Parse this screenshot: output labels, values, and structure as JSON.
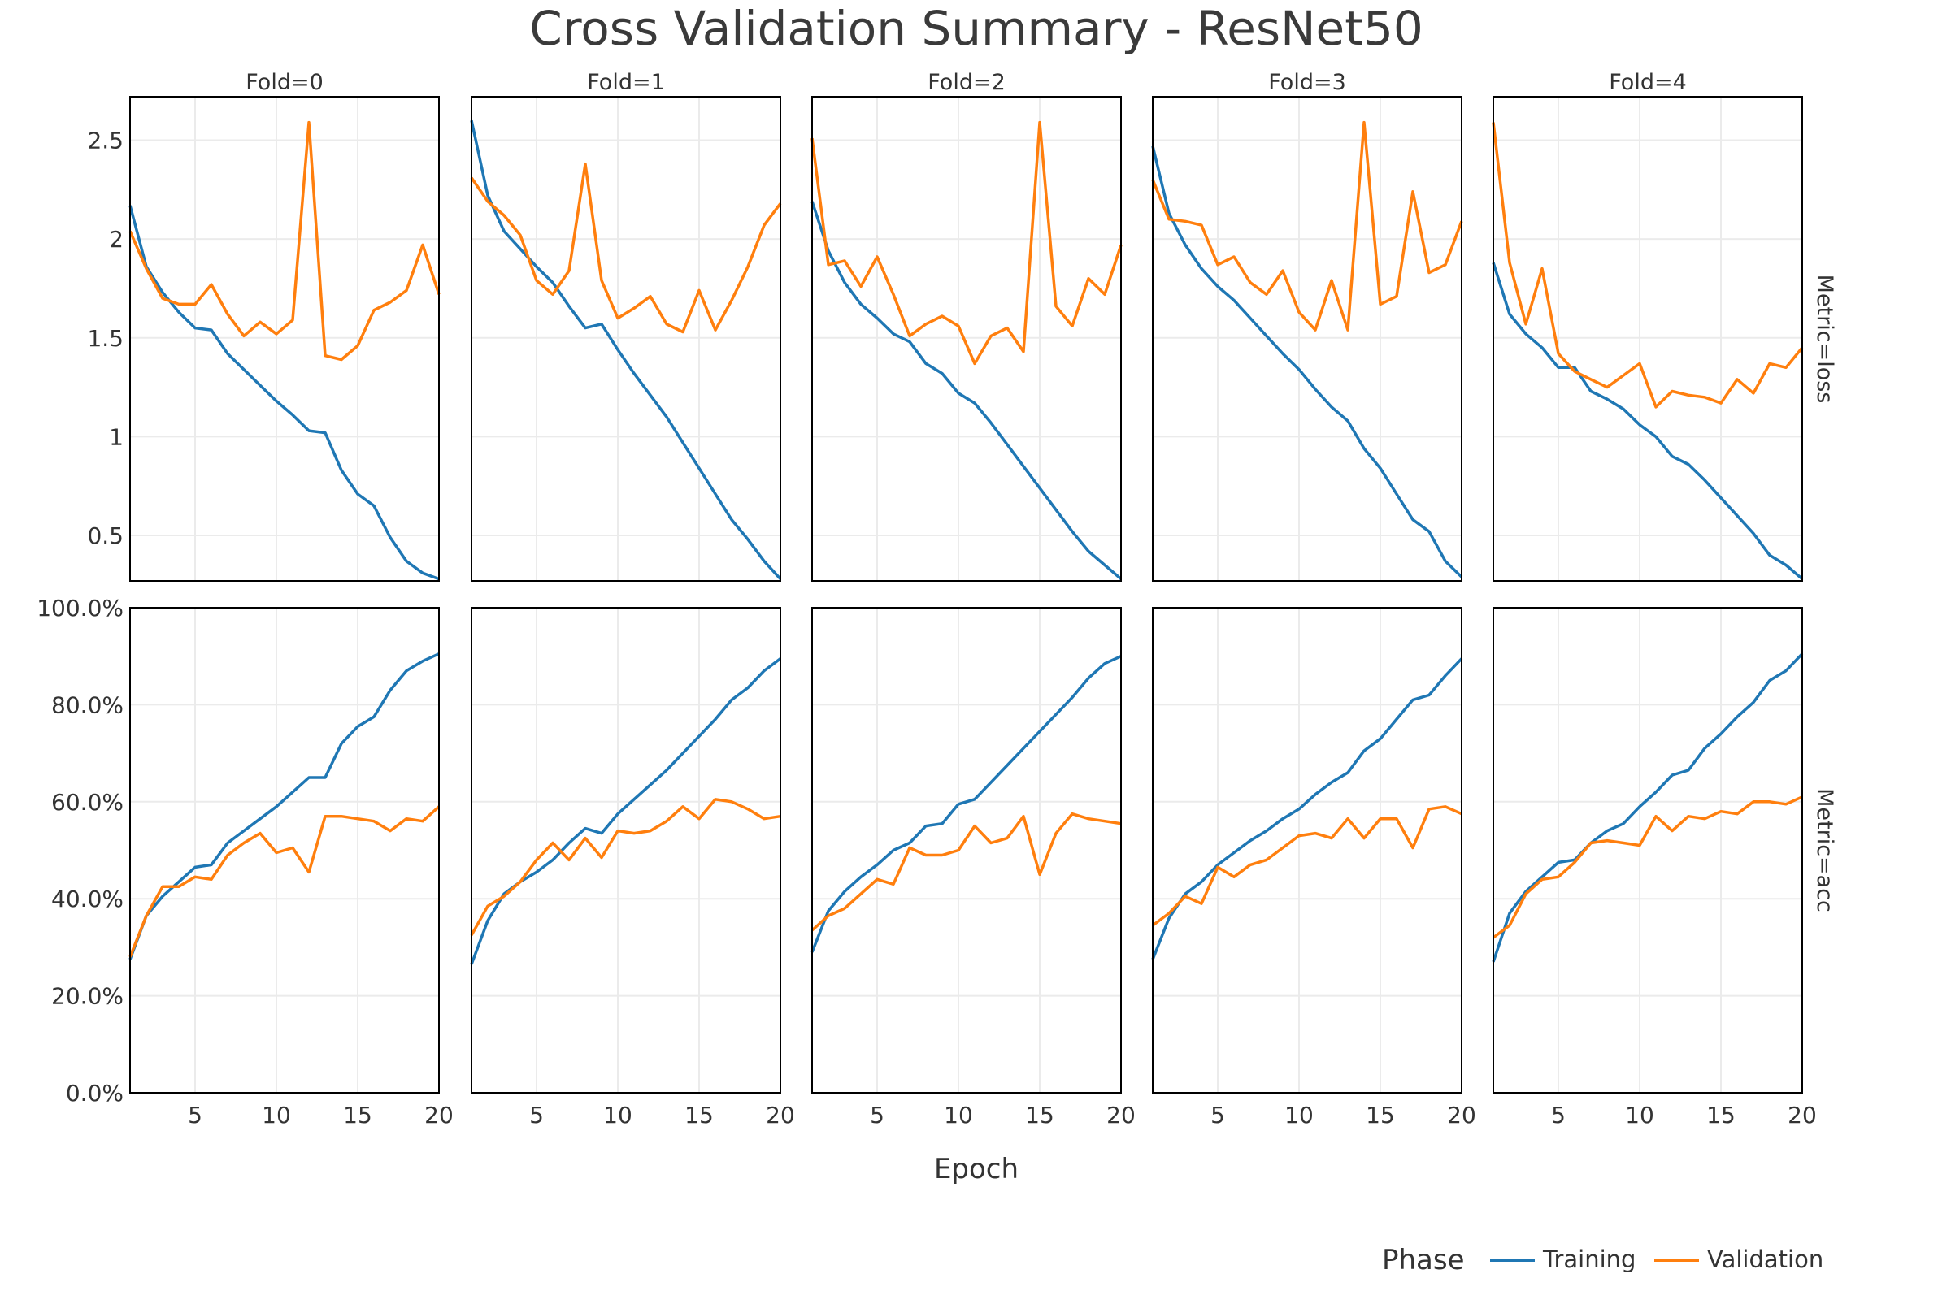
{
  "chart_data": {
    "type": "line",
    "title": "Cross Validation Summary - ResNet50",
    "xlabel": "Epoch",
    "x": [
      1,
      2,
      3,
      4,
      5,
      6,
      7,
      8,
      9,
      10,
      11,
      12,
      13,
      14,
      15,
      16,
      17,
      18,
      19,
      20
    ],
    "x_ticks": [
      5,
      10,
      15,
      20
    ],
    "x_tick_labels": [
      "5",
      "10",
      "15",
      "20"
    ],
    "xlim": [
      1,
      20
    ],
    "legend": {
      "title": "Phase",
      "placement": "bottom-right",
      "entries": [
        {
          "name": "Training",
          "color": "#1f77b4"
        },
        {
          "name": "Validation",
          "color": "#ff7f0e"
        }
      ]
    },
    "grid": true,
    "colors": {
      "training": "#1f77b4",
      "validation": "#ff7f0e",
      "grid": "#ebebeb",
      "frame": "#000000"
    },
    "folds": [
      "Fold=0",
      "Fold=1",
      "Fold=2",
      "Fold=3",
      "Fold=4"
    ],
    "rows": [
      {
        "label": "Metric=loss",
        "ylim": [
          0.27,
          2.72
        ],
        "y_ticks": [
          0.5,
          1,
          1.5,
          2,
          2.5
        ],
        "y_tick_labels": [
          "0.5",
          "1",
          "1.5",
          "2",
          "2.5"
        ],
        "panels": [
          {
            "series": [
              {
                "name": "Training",
                "values": [
                  2.17,
                  1.86,
                  1.73,
                  1.63,
                  1.55,
                  1.54,
                  1.42,
                  1.34,
                  1.26,
                  1.18,
                  1.11,
                  1.03,
                  1.02,
                  0.83,
                  0.71,
                  0.65,
                  0.49,
                  0.37,
                  0.31,
                  0.28
                ]
              },
              {
                "name": "Validation",
                "values": [
                  2.04,
                  1.85,
                  1.7,
                  1.67,
                  1.67,
                  1.77,
                  1.62,
                  1.51,
                  1.58,
                  1.52,
                  1.59,
                  2.59,
                  1.41,
                  1.39,
                  1.46,
                  1.64,
                  1.68,
                  1.74,
                  1.97,
                  1.72
                ]
              }
            ]
          },
          {
            "series": [
              {
                "name": "Training",
                "values": [
                  2.6,
                  2.22,
                  2.04,
                  1.95,
                  1.86,
                  1.78,
                  1.66,
                  1.55,
                  1.57,
                  1.44,
                  1.32,
                  1.21,
                  1.1,
                  0.97,
                  0.84,
                  0.71,
                  0.58,
                  0.48,
                  0.37,
                  0.28
                ]
              },
              {
                "name": "Validation",
                "values": [
                  2.31,
                  2.19,
                  2.12,
                  2.02,
                  1.79,
                  1.72,
                  1.84,
                  2.38,
                  1.79,
                  1.6,
                  1.65,
                  1.71,
                  1.57,
                  1.53,
                  1.74,
                  1.54,
                  1.69,
                  1.86,
                  2.07,
                  2.18
                ]
              }
            ]
          },
          {
            "series": [
              {
                "name": "Training",
                "values": [
                  2.19,
                  1.94,
                  1.78,
                  1.67,
                  1.6,
                  1.52,
                  1.48,
                  1.37,
                  1.32,
                  1.22,
                  1.17,
                  1.07,
                  0.96,
                  0.85,
                  0.74,
                  0.63,
                  0.52,
                  0.42,
                  0.35,
                  0.28
                ]
              },
              {
                "name": "Validation",
                "values": [
                  2.51,
                  1.87,
                  1.89,
                  1.76,
                  1.91,
                  1.72,
                  1.51,
                  1.57,
                  1.61,
                  1.56,
                  1.37,
                  1.51,
                  1.55,
                  1.43,
                  2.59,
                  1.66,
                  1.56,
                  1.8,
                  1.72,
                  1.97
                ]
              }
            ]
          },
          {
            "series": [
              {
                "name": "Training",
                "values": [
                  2.47,
                  2.13,
                  1.97,
                  1.85,
                  1.76,
                  1.69,
                  1.6,
                  1.51,
                  1.42,
                  1.34,
                  1.24,
                  1.15,
                  1.08,
                  0.94,
                  0.84,
                  0.71,
                  0.58,
                  0.52,
                  0.37,
                  0.29
                ]
              },
              {
                "name": "Validation",
                "values": [
                  2.3,
                  2.1,
                  2.09,
                  2.07,
                  1.87,
                  1.91,
                  1.78,
                  1.72,
                  1.84,
                  1.63,
                  1.54,
                  1.79,
                  1.54,
                  2.59,
                  1.67,
                  1.71,
                  2.24,
                  1.83,
                  1.87,
                  2.09
                ]
              }
            ]
          },
          {
            "series": [
              {
                "name": "Training",
                "values": [
                  1.88,
                  1.62,
                  1.52,
                  1.45,
                  1.35,
                  1.35,
                  1.23,
                  1.19,
                  1.14,
                  1.06,
                  1.0,
                  0.9,
                  0.86,
                  0.78,
                  0.69,
                  0.6,
                  0.51,
                  0.4,
                  0.35,
                  0.28
                ]
              },
              {
                "name": "Validation",
                "values": [
                  2.59,
                  1.88,
                  1.57,
                  1.85,
                  1.42,
                  1.33,
                  1.29,
                  1.25,
                  1.31,
                  1.37,
                  1.15,
                  1.23,
                  1.21,
                  1.2,
                  1.17,
                  1.29,
                  1.22,
                  1.37,
                  1.35,
                  1.45
                ]
              }
            ]
          }
        ]
      },
      {
        "label": "Metric=acc",
        "ylim": [
          0,
          100
        ],
        "y_ticks": [
          0,
          20,
          40,
          60,
          80,
          100
        ],
        "y_tick_labels": [
          "0.0%",
          "20.0%",
          "40.0%",
          "60.0%",
          "80.0%",
          "100.0%"
        ],
        "panels": [
          {
            "series": [
              {
                "name": "Training",
                "values": [
                  27.5,
                  36.5,
                  40.5,
                  43.5,
                  46.5,
                  47.0,
                  51.5,
                  54.0,
                  56.5,
                  59.0,
                  62.0,
                  65.0,
                  65.0,
                  72.0,
                  75.5,
                  77.5,
                  83.0,
                  87.0,
                  89.0,
                  90.5
                ]
              },
              {
                "name": "Validation",
                "values": [
                  28.0,
                  36.5,
                  42.5,
                  42.5,
                  44.5,
                  44.0,
                  49.0,
                  51.5,
                  53.5,
                  49.5,
                  50.5,
                  45.5,
                  57.0,
                  57.0,
                  56.5,
                  56.0,
                  54.0,
                  56.5,
                  56.0,
                  59.0
                ]
              }
            ]
          },
          {
            "series": [
              {
                "name": "Training",
                "values": [
                  26.5,
                  35.5,
                  41.0,
                  43.5,
                  45.5,
                  48.0,
                  51.5,
                  54.5,
                  53.5,
                  57.5,
                  60.5,
                  63.5,
                  66.5,
                  70.0,
                  73.5,
                  77.0,
                  81.0,
                  83.5,
                  87.0,
                  89.5
                ]
              },
              {
                "name": "Validation",
                "values": [
                  32.5,
                  38.5,
                  40.5,
                  43.5,
                  48.0,
                  51.5,
                  48.0,
                  52.5,
                  48.5,
                  54.0,
                  53.5,
                  54.0,
                  56.0,
                  59.0,
                  56.5,
                  60.5,
                  60.0,
                  58.5,
                  56.5,
                  57.0
                ]
              }
            ]
          },
          {
            "series": [
              {
                "name": "Training",
                "values": [
                  29.0,
                  37.5,
                  41.5,
                  44.5,
                  47.0,
                  50.0,
                  51.5,
                  55.0,
                  55.5,
                  59.5,
                  60.5,
                  64.0,
                  67.5,
                  71.0,
                  74.5,
                  78.0,
                  81.5,
                  85.5,
                  88.5,
                  90.0
                ]
              },
              {
                "name": "Validation",
                "values": [
                  33.5,
                  36.5,
                  38.0,
                  41.0,
                  44.0,
                  43.0,
                  50.5,
                  49.0,
                  49.0,
                  50.0,
                  55.0,
                  51.5,
                  52.5,
                  57.0,
                  45.0,
                  53.5,
                  57.5,
                  56.5,
                  56.0,
                  55.5
                ]
              }
            ]
          },
          {
            "series": [
              {
                "name": "Training",
                "values": [
                  27.5,
                  36.0,
                  41.0,
                  43.5,
                  47.0,
                  49.5,
                  52.0,
                  54.0,
                  56.5,
                  58.5,
                  61.5,
                  64.0,
                  66.0,
                  70.5,
                  73.0,
                  77.0,
                  81.0,
                  82.0,
                  86.0,
                  89.5
                ]
              },
              {
                "name": "Validation",
                "values": [
                  34.5,
                  37.0,
                  40.5,
                  39.0,
                  46.5,
                  44.5,
                  47.0,
                  48.0,
                  50.5,
                  53.0,
                  53.5,
                  52.5,
                  56.5,
                  52.5,
                  56.5,
                  56.5,
                  50.5,
                  58.5,
                  59.0,
                  57.5
                ]
              }
            ]
          },
          {
            "series": [
              {
                "name": "Training",
                "values": [
                  27.0,
                  37.0,
                  41.5,
                  44.5,
                  47.5,
                  48.0,
                  51.5,
                  54.0,
                  55.5,
                  59.0,
                  62.0,
                  65.5,
                  66.5,
                  71.0,
                  74.0,
                  77.5,
                  80.5,
                  85.0,
                  87.0,
                  90.5
                ]
              },
              {
                "name": "Validation",
                "values": [
                  32.0,
                  34.5,
                  41.0,
                  44.0,
                  44.5,
                  47.5,
                  51.5,
                  52.0,
                  51.5,
                  51.0,
                  57.0,
                  54.0,
                  57.0,
                  56.5,
                  58.0,
                  57.5,
                  60.0,
                  60.0,
                  59.5,
                  61.0
                ]
              }
            ]
          }
        ]
      }
    ]
  }
}
